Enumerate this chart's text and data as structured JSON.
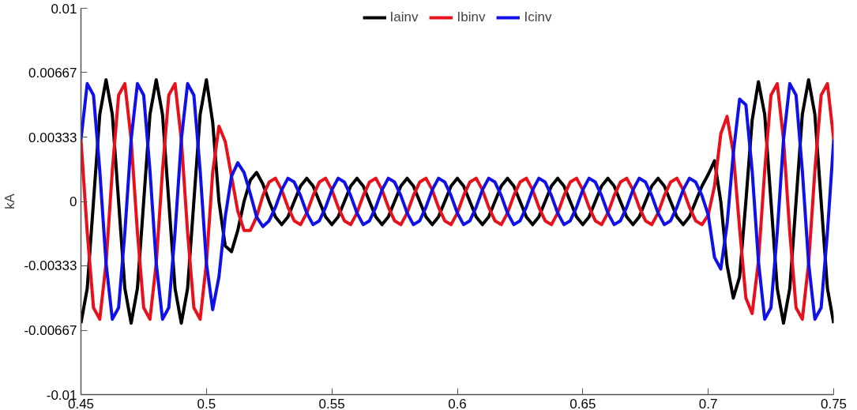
{
  "chart_data": {
    "type": "line",
    "ylabel": "kA",
    "legend": "top",
    "xlim": [
      0.45,
      0.75
    ],
    "ylim": [
      -0.01,
      0.01
    ],
    "xticks": [
      0.45,
      0.5,
      0.55,
      0.6,
      0.65,
      0.7,
      0.75
    ],
    "yticks": [
      -0.01,
      -0.00667,
      -0.00333,
      0,
      0.00333,
      0.00667,
      0.01
    ],
    "x": [
      0.45,
      0.4525,
      0.455,
      0.4575,
      0.46,
      0.4625,
      0.465,
      0.4675,
      0.47,
      0.4725,
      0.475,
      0.4775,
      0.48,
      0.4825,
      0.485,
      0.4875,
      0.49,
      0.4925,
      0.495,
      0.4975,
      0.5,
      0.5025,
      0.505,
      0.5075,
      0.51,
      0.5125,
      0.515,
      0.5175,
      0.52,
      0.5225,
      0.525,
      0.5275,
      0.53,
      0.5325,
      0.535,
      0.5375,
      0.54,
      0.5425,
      0.545,
      0.5475,
      0.55,
      0.5525,
      0.555,
      0.5575,
      0.56,
      0.5625,
      0.565,
      0.5675,
      0.57,
      0.5725,
      0.575,
      0.5775,
      0.58,
      0.5825,
      0.585,
      0.5875,
      0.59,
      0.5925,
      0.595,
      0.5975,
      0.6,
      0.6025,
      0.605,
      0.6075,
      0.61,
      0.6125,
      0.615,
      0.6175,
      0.62,
      0.6225,
      0.625,
      0.6275,
      0.63,
      0.6325,
      0.635,
      0.6375,
      0.64,
      0.6425,
      0.645,
      0.6475,
      0.65,
      0.6525,
      0.655,
      0.6575,
      0.66,
      0.6625,
      0.665,
      0.6675,
      0.67,
      0.6725,
      0.675,
      0.6775,
      0.68,
      0.6825,
      0.685,
      0.6875,
      0.69,
      0.6925,
      0.695,
      0.6975,
      0.7,
      0.7025,
      0.705,
      0.7075,
      0.71,
      0.7125,
      0.715,
      0.7175,
      0.72,
      0.7225,
      0.725,
      0.7275,
      0.73,
      0.7325,
      0.735,
      0.7375,
      0.74,
      0.7425,
      0.745,
      0.7475,
      0.75
    ],
    "series": [
      {
        "name": "Iainv",
        "color": "#000000",
        "values": [
          -0.0063,
          -0.0045,
          0,
          0.0045,
          0.0063,
          0.0045,
          0,
          -0.0045,
          -0.0063,
          -0.0045,
          0,
          0.0045,
          0.0063,
          0.0045,
          0,
          -0.0045,
          -0.0063,
          -0.0045,
          0,
          0.0045,
          0.0063,
          0.0041,
          0,
          -0.0023,
          -0.0026,
          -0.0015,
          0,
          0.0011,
          0.0015,
          0.0009,
          0,
          -0.0008,
          -0.0012,
          -0.0008,
          0,
          0.0008,
          0.0012,
          0.0008,
          0,
          -0.0008,
          -0.0012,
          -0.0008,
          0,
          0.0008,
          0.0012,
          0.0008,
          0,
          -0.0008,
          -0.0012,
          -0.0008,
          0,
          0.0008,
          0.0012,
          0.0008,
          0,
          -0.0008,
          -0.0012,
          -0.0008,
          0,
          0.0008,
          0.0012,
          0.0008,
          0,
          -0.0008,
          -0.0012,
          -0.0008,
          0,
          0.0008,
          0.0012,
          0.0008,
          0,
          -0.0008,
          -0.0012,
          -0.0008,
          0,
          0.0008,
          0.0012,
          0.0008,
          0,
          -0.0008,
          -0.0012,
          -0.0008,
          0,
          0.0008,
          0.0012,
          0.0008,
          0,
          -0.0008,
          -0.0012,
          -0.0008,
          0,
          0.0008,
          0.0012,
          0.0008,
          0,
          -0.0008,
          -0.0012,
          -0.0008,
          0,
          0.0008,
          0.0014,
          0.0021,
          0,
          -0.0033,
          -0.005,
          -0.0039,
          0,
          0.0042,
          0.0062,
          0.0045,
          0,
          -0.0045,
          -0.0063,
          -0.0045,
          0,
          0.0045,
          0.0063,
          0.0045,
          0,
          -0.0045,
          -0.0063
        ]
      },
      {
        "name": "Ibinv",
        "color": "#e8101a",
        "values": [
          0.0032,
          -0.0016,
          -0.0055,
          -0.0061,
          -0.0032,
          0.0016,
          0.0055,
          0.0061,
          0.0032,
          -0.0016,
          -0.0055,
          -0.0061,
          -0.0032,
          0.0016,
          0.0055,
          0.0061,
          0.0032,
          -0.0016,
          -0.0055,
          -0.0061,
          -0.0032,
          0.0015,
          0.0039,
          0.0031,
          0.0013,
          -0.0005,
          -0.0015,
          -0.0015,
          -0.0008,
          0.0003,
          0.001,
          0.0012,
          0.0006,
          -0.0003,
          -0.001,
          -0.0012,
          -0.0006,
          0.0003,
          0.001,
          0.0012,
          0.0006,
          -0.0003,
          -0.001,
          -0.0012,
          -0.0006,
          0.0003,
          0.001,
          0.0012,
          0.0006,
          -0.0003,
          -0.001,
          -0.0012,
          -0.0006,
          0.0003,
          0.001,
          0.0012,
          0.0006,
          -0.0003,
          -0.001,
          -0.0012,
          -0.0006,
          0.0003,
          0.001,
          0.0012,
          0.0006,
          -0.0003,
          -0.001,
          -0.0012,
          -0.0006,
          0.0003,
          0.001,
          0.0012,
          0.0006,
          -0.0003,
          -0.001,
          -0.0012,
          -0.0006,
          0.0003,
          0.001,
          0.0012,
          0.0006,
          -0.0003,
          -0.001,
          -0.0012,
          -0.0006,
          0.0003,
          0.001,
          0.0012,
          0.0006,
          -0.0003,
          -0.001,
          -0.0012,
          -0.0006,
          0.0003,
          0.001,
          0.0012,
          0.0006,
          -0.0003,
          -0.001,
          -0.0012,
          -0.0007,
          0.0008,
          0.0035,
          0.0044,
          0.0025,
          -0.0014,
          -0.005,
          -0.0058,
          -0.0031,
          0.0016,
          0.0055,
          0.0061,
          0.0032,
          -0.0016,
          -0.0055,
          -0.0061,
          -0.0032,
          0.0016,
          0.0055,
          0.0061,
          0.0032
        ]
      },
      {
        "name": "Icinv",
        "color": "#1010e8",
        "values": [
          0.0032,
          0.0061,
          0.0055,
          0.0016,
          -0.0032,
          -0.0061,
          -0.0055,
          -0.0016,
          0.0032,
          0.0061,
          0.0055,
          0.0016,
          -0.0032,
          -0.0061,
          -0.0055,
          -0.0016,
          0.0032,
          0.0061,
          0.0055,
          0.0016,
          -0.0032,
          -0.0056,
          -0.0039,
          -0.0008,
          0.0013,
          0.002,
          0.0015,
          0.0004,
          -0.0008,
          -0.0013,
          -0.001,
          -0.0003,
          0.0006,
          0.0012,
          0.001,
          0.0003,
          -0.0006,
          -0.0012,
          -0.001,
          -0.0003,
          0.0006,
          0.0012,
          0.001,
          0.0003,
          -0.0006,
          -0.0012,
          -0.001,
          -0.0003,
          0.0006,
          0.0012,
          0.001,
          0.0003,
          -0.0006,
          -0.0012,
          -0.001,
          -0.0003,
          0.0006,
          0.0012,
          0.001,
          0.0003,
          -0.0006,
          -0.0012,
          -0.001,
          -0.0003,
          0.0006,
          0.0012,
          0.001,
          0.0003,
          -0.0006,
          -0.0012,
          -0.001,
          -0.0003,
          0.0006,
          0.0012,
          0.001,
          0.0003,
          -0.0006,
          -0.0012,
          -0.001,
          -0.0003,
          0.0006,
          0.0012,
          0.001,
          0.0003,
          -0.0006,
          -0.0012,
          -0.001,
          -0.0003,
          0.0006,
          0.0012,
          0.001,
          0.0003,
          -0.0006,
          -0.0012,
          -0.001,
          -0.0003,
          0.0006,
          0.0012,
          0.001,
          0.0003,
          -0.0007,
          -0.0029,
          -0.0035,
          -0.0012,
          0.0025,
          0.0053,
          0.005,
          0.0016,
          -0.0031,
          -0.0061,
          -0.0055,
          -0.0016,
          0.0032,
          0.0061,
          0.0055,
          0.0016,
          -0.0032,
          -0.0061,
          -0.0055,
          -0.0016,
          0.0032
        ]
      }
    ]
  }
}
